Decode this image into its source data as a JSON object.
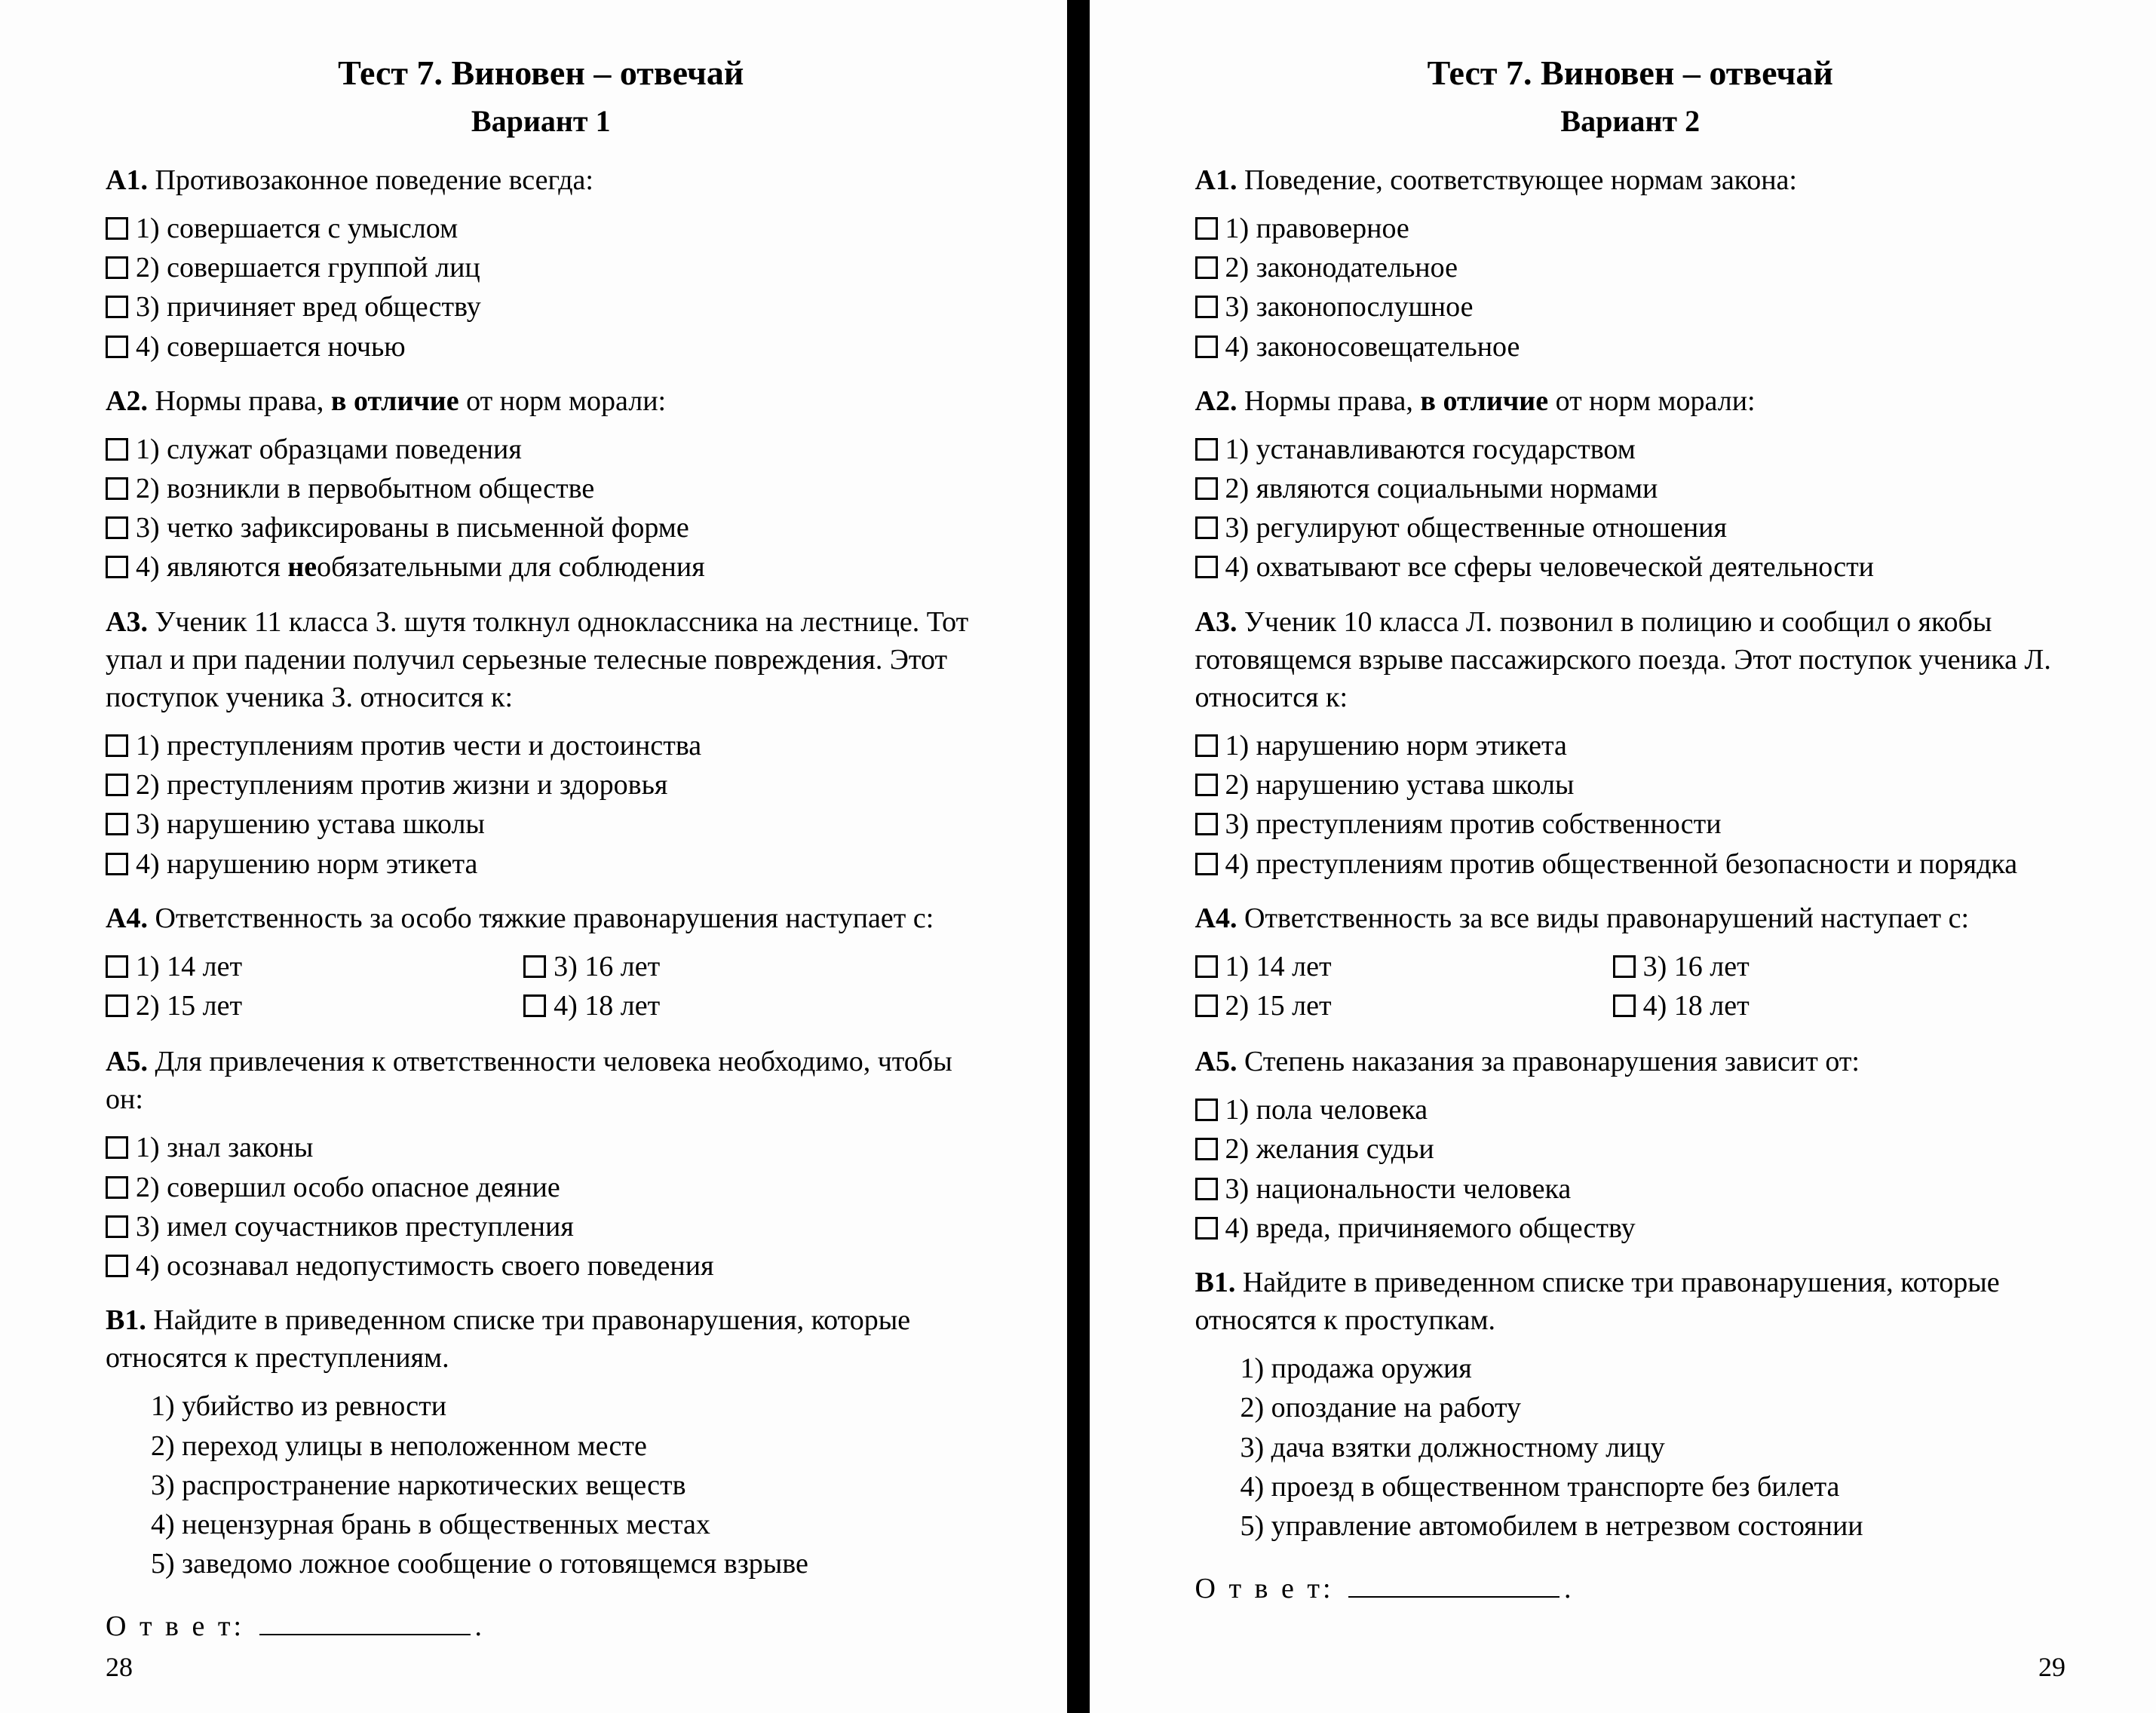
{
  "pages": [
    {
      "title": "Тест 7. Виновен – отвечай",
      "variant": "Вариант 1",
      "page_num": "28",
      "questions": [
        {
          "label": "А1.",
          "text": "Противозаконное поведение всегда:",
          "options": [
            "1) совершается с умыслом",
            "2) совершается группой лиц",
            "3) причиняет вред обществу",
            "4) совершается ночью"
          ]
        },
        {
          "label": "А2.",
          "html": "Нормы права, <b>в отличие</b> от норм морали:",
          "options": [
            "1) служат образцами поведения",
            "2) возникли в первобытном обществе",
            "3) четко зафиксированы в письменной форме",
            "4) являются <b>не</b>обязательными для соблюдения"
          ]
        },
        {
          "label": "А3.",
          "text": "Ученик 11 класса З. шутя толкнул одноклассника на лестнице. Тот упал и при падении получил серьезные телесные повреждения. Этот поступок ученика З. относится к:",
          "options": [
            "1) преступлениям против чести и достоинства",
            "2) преступлениям против жизни и здоровья",
            "3) нарушению устава школы",
            "4) нарушению норм этикета"
          ]
        },
        {
          "label": "А4.",
          "text": "Ответственность за особо тяжкие правонарушения наступает с:",
          "two_col": true,
          "options": [
            "1) 14 лет",
            "3) 16 лет",
            "2) 15 лет",
            "4) 18 лет"
          ]
        },
        {
          "label": "А5.",
          "text": "Для привлечения к ответственности человека необходимо, чтобы он:",
          "options": [
            "1) знал законы",
            "2) совершил особо опасное деяние",
            "3) имел соучастников преступления",
            "4) осознавал недопустимость своего поведения"
          ]
        },
        {
          "label": "В1.",
          "text": "Найдите в приведенном списке три правонарушения, которые относятся к преступлениям.",
          "list": [
            "1) убийство из ревности",
            "2) переход улицы в неположенном месте",
            "3) распространение наркотических веществ",
            "4) нецензурная брань в общественных местах",
            "5) заведомо ложное сообщение о готовящемся взрыве"
          ]
        }
      ],
      "answer_label": "О т в е т:"
    },
    {
      "title": "Тест 7. Виновен – отвечай",
      "variant": "Вариант 2",
      "page_num": "29",
      "questions": [
        {
          "label": "А1.",
          "text": "Поведение, соответствующее нормам закона:",
          "options": [
            "1) правоверное",
            "2) законодательное",
            "3) законопослушное",
            "4) законосовещательное"
          ]
        },
        {
          "label": "А2.",
          "html": "Нормы права, <b>в отличие</b> от норм морали:",
          "options": [
            "1) устанавливаются государством",
            "2) являются социальными нормами",
            "3) регулируют общественные отношения",
            "4) охватывают все сферы человеческой деятельности"
          ]
        },
        {
          "label": "А3.",
          "text": "Ученик 10 класса Л. позвонил в полицию и сообщил о якобы готовящемся взрыве пассажирского поезда. Этот поступок ученика Л. относится к:",
          "options": [
            "1) нарушению норм этикета",
            "2) нарушению устава школы",
            "3) преступлениям против собственности",
            "4) преступлениям против общественной безопасности и порядка"
          ]
        },
        {
          "label": "А4.",
          "text": "Ответственность за все виды правонарушений наступает с:",
          "two_col": true,
          "options": [
            "1) 14 лет",
            "3) 16 лет",
            "2) 15 лет",
            "4) 18 лет"
          ]
        },
        {
          "label": "А5.",
          "text": "Степень наказания за правонарушения зависит от:",
          "options": [
            "1) пола человека",
            "2) желания судьи",
            "3) национальности человека",
            "4) вреда, причиняемого обществу"
          ]
        },
        {
          "label": "В1.",
          "text": "Найдите в приведенном списке три правонарушения, которые относятся к проступкам.",
          "list": [
            "1) продажа оружия",
            "2) опоздание на работу",
            "3) дача взятки должностному лицу",
            "4) проезд в общественном транспорте без билета",
            "5) управление автомобилем в нетрезвом состоянии"
          ]
        }
      ],
      "answer_label": "О т в е т:"
    }
  ]
}
